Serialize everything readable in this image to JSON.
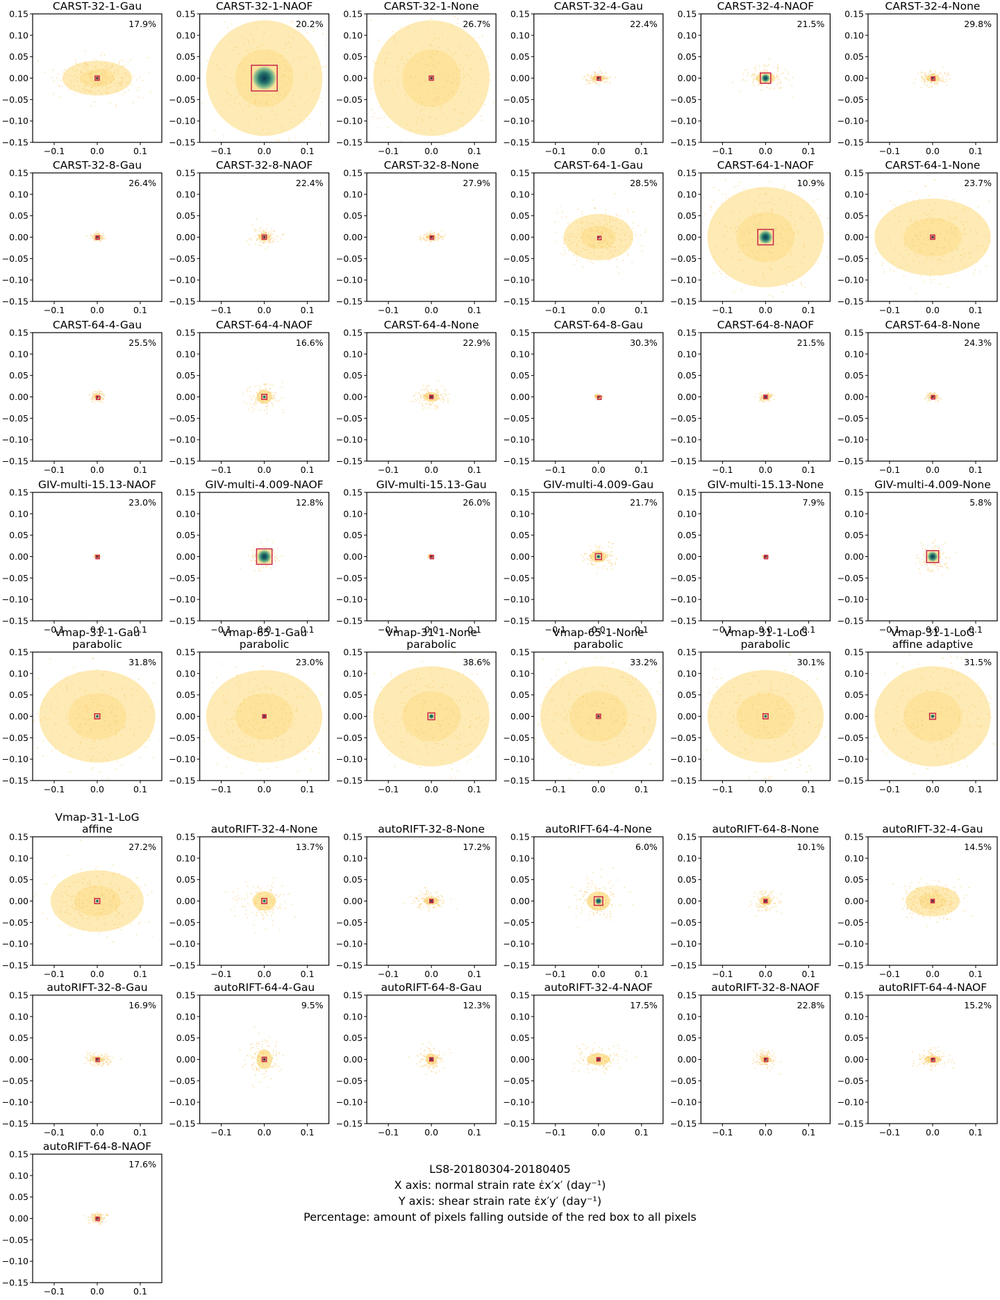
{
  "figure": {
    "subplot_titles": [
      [
        "CARST-32-1-Gau"
      ],
      [
        "CARST-32-1-NAOF"
      ],
      [
        "CARST-32-1-None"
      ],
      [
        "CARST-32-4-Gau"
      ],
      [
        "CARST-32-4-NAOF"
      ],
      [
        "CARST-32-4-None"
      ],
      [
        "CARST-32-8-Gau"
      ],
      [
        "CARST-32-8-NAOF"
      ],
      [
        "CARST-32-8-None"
      ],
      [
        "CARST-64-1-Gau"
      ],
      [
        "CARST-64-1-NAOF"
      ],
      [
        "CARST-64-1-None"
      ],
      [
        "CARST-64-4-Gau"
      ],
      [
        "CARST-64-4-NAOF"
      ],
      [
        "CARST-64-4-None"
      ],
      [
        "CARST-64-8-Gau"
      ],
      [
        "CARST-64-8-NAOF"
      ],
      [
        "CARST-64-8-None"
      ],
      [
        "GIV-multi-15.13-NAOF"
      ],
      [
        "GIV-multi-4.009-NAOF"
      ],
      [
        "GIV-multi-15.13-Gau"
      ],
      [
        "GIV-multi-4.009-Gau"
      ],
      [
        "GIV-multi-15.13-None"
      ],
      [
        "GIV-multi-4.009-None"
      ],
      [
        "Vmap-31-1-Gau",
        "parabolic"
      ],
      [
        "Vmap-65-1-Gau",
        "parabolic"
      ],
      [
        "Vmap-31-1-None",
        "parabolic"
      ],
      [
        "Vmap-65-1-None",
        "parabolic"
      ],
      [
        "Vmap-31-1-LoG",
        "parabolic"
      ],
      [
        "Vmap-31-1-LoG",
        "affine adaptive"
      ],
      [
        "Vmap-31-1-LoG",
        "affine"
      ],
      [
        "autoRIFT-32-4-None"
      ],
      [
        "autoRIFT-32-8-None"
      ],
      [
        "autoRIFT-64-4-None"
      ],
      [
        "autoRIFT-64-8-None"
      ],
      [
        "autoRIFT-32-4-Gau"
      ],
      [
        "autoRIFT-32-8-Gau"
      ],
      [
        "autoRIFT-64-4-Gau"
      ],
      [
        "autoRIFT-64-8-Gau"
      ],
      [
        "autoRIFT-32-4-NAOF"
      ],
      [
        "autoRIFT-32-8-NAOF"
      ],
      [
        "autoRIFT-64-4-NAOF"
      ],
      [
        "autoRIFT-64-8-NAOF"
      ]
    ],
    "percentages": [
      "17.9%",
      "20.2%",
      "26.7%",
      "22.4%",
      "21.5%",
      "29.8%",
      "26.4%",
      "22.4%",
      "27.9%",
      "28.5%",
      "10.9%",
      "23.7%",
      "25.5%",
      "16.6%",
      "22.9%",
      "30.3%",
      "21.5%",
      "24.3%",
      "23.0%",
      "12.8%",
      "26.0%",
      "21.7%",
      "7.9%",
      "5.8%",
      "31.8%",
      "23.0%",
      "38.6%",
      "33.2%",
      "30.1%",
      "31.5%",
      "27.2%",
      "13.7%",
      "17.2%",
      "6.0%",
      "10.1%",
      "14.5%",
      "16.9%",
      "9.5%",
      "12.3%",
      "17.5%",
      "22.8%",
      "15.2%",
      "17.6%"
    ],
    "x_tick_labels": [
      "−0.1",
      "0.0",
      "0.1"
    ],
    "y_tick_labels": [
      "0.15",
      "0.10",
      "0.05",
      "0.00",
      "−0.05",
      "−0.10",
      "−0.15"
    ]
  },
  "note": {
    "line1": "LS8-20180304-20180405",
    "line2": "X axis: normal strain rate ε̇x′x′ (day⁻¹)",
    "line3": "Y axis: shear strain rate ε̇x′y′ (day⁻¹)",
    "line4": "Percentage: amount of pixels falling outside of the red box to all pixels"
  },
  "colors": {
    "scatter": "#fde39b",
    "box": "#c8264a",
    "core": "#1f6e6a",
    "axis": "#000000"
  },
  "chart_data": {
    "type": "heatmap",
    "xlim": [
      -0.15,
      0.15
    ],
    "ylim": [
      -0.15,
      0.15
    ],
    "xticks": [
      -0.1,
      0.0,
      0.1
    ],
    "yticks": [
      0.15,
      0.1,
      0.05,
      0.0,
      -0.05,
      -0.1,
      -0.15
    ],
    "panels": [
      {
        "spread_x": 0.09,
        "spread_y": 0.045,
        "box_half": 0.005
      },
      {
        "spread_x": 0.15,
        "spread_y": 0.15,
        "box_half": 0.03
      },
      {
        "spread_x": 0.15,
        "spread_y": 0.15,
        "box_half": 0.005
      },
      {
        "spread_x": 0.03,
        "spread_y": 0.015,
        "box_half": 0.003
      },
      {
        "spread_x": 0.05,
        "spread_y": 0.03,
        "box_half": 0.012
      },
      {
        "spread_x": 0.035,
        "spread_y": 0.02,
        "box_half": 0.003
      },
      {
        "spread_x": 0.015,
        "spread_y": 0.008,
        "box_half": 0.003
      },
      {
        "spread_x": 0.03,
        "spread_y": 0.02,
        "box_half": 0.005
      },
      {
        "spread_x": 0.025,
        "spread_y": 0.012,
        "box_half": 0.003
      },
      {
        "spread_x": 0.09,
        "spread_y": 0.06,
        "box_half": 0.002
      },
      {
        "spread_x": 0.15,
        "spread_y": 0.13,
        "box_half": 0.018
      },
      {
        "spread_x": 0.15,
        "spread_y": 0.1,
        "box_half": 0.005
      },
      {
        "spread_x": 0.015,
        "spread_y": 0.012,
        "box_half": 0.002
      },
      {
        "spread_x": 0.04,
        "spread_y": 0.035,
        "box_half": 0.006
      },
      {
        "spread_x": 0.04,
        "spread_y": 0.025,
        "box_half": 0.004
      },
      {
        "spread_x": 0.008,
        "spread_y": 0.005,
        "box_half": 0.002
      },
      {
        "spread_x": 0.015,
        "spread_y": 0.01,
        "box_half": 0.004
      },
      {
        "spread_x": 0.015,
        "spread_y": 0.01,
        "box_half": 0.003
      },
      {
        "spread_x": 0.006,
        "spread_y": 0.004,
        "box_half": 0.003
      },
      {
        "spread_x": 0.035,
        "spread_y": 0.03,
        "box_half": 0.018
      },
      {
        "spread_x": 0.006,
        "spread_y": 0.004,
        "box_half": 0.003
      },
      {
        "spread_x": 0.04,
        "spread_y": 0.03,
        "box_half": 0.007
      },
      {
        "spread_x": 0.005,
        "spread_y": 0.004,
        "box_half": 0.003
      },
      {
        "spread_x": 0.035,
        "spread_y": 0.03,
        "box_half": 0.014
      },
      {
        "spread_x": 0.15,
        "spread_y": 0.12,
        "box_half": 0.006
      },
      {
        "spread_x": 0.15,
        "spread_y": 0.12,
        "box_half": 0.004
      },
      {
        "spread_x": 0.15,
        "spread_y": 0.13,
        "box_half": 0.008
      },
      {
        "spread_x": 0.15,
        "spread_y": 0.13,
        "box_half": 0.005
      },
      {
        "spread_x": 0.15,
        "spread_y": 0.12,
        "box_half": 0.006
      },
      {
        "spread_x": 0.15,
        "spread_y": 0.13,
        "box_half": 0.007
      },
      {
        "spread_x": 0.12,
        "spread_y": 0.08,
        "box_half": 0.006
      },
      {
        "spread_x": 0.06,
        "spread_y": 0.05,
        "box_half": 0.006
      },
      {
        "spread_x": 0.04,
        "spread_y": 0.02,
        "box_half": 0.004
      },
      {
        "spread_x": 0.06,
        "spread_y": 0.05,
        "box_half": 0.01
      },
      {
        "spread_x": 0.03,
        "spread_y": 0.025,
        "box_half": 0.004
      },
      {
        "spread_x": 0.07,
        "spread_y": 0.04,
        "box_half": 0.004
      },
      {
        "spread_x": 0.03,
        "spread_y": 0.015,
        "box_half": 0.003
      },
      {
        "spread_x": 0.04,
        "spread_y": 0.05,
        "box_half": 0.005
      },
      {
        "spread_x": 0.03,
        "spread_y": 0.03,
        "box_half": 0.004
      },
      {
        "spread_x": 0.06,
        "spread_y": 0.03,
        "box_half": 0.004
      },
      {
        "spread_x": 0.025,
        "spread_y": 0.02,
        "box_half": 0.003
      },
      {
        "spread_x": 0.04,
        "spread_y": 0.02,
        "box_half": 0.003
      },
      {
        "spread_x": 0.02,
        "spread_y": 0.012,
        "box_half": 0.003
      }
    ]
  }
}
